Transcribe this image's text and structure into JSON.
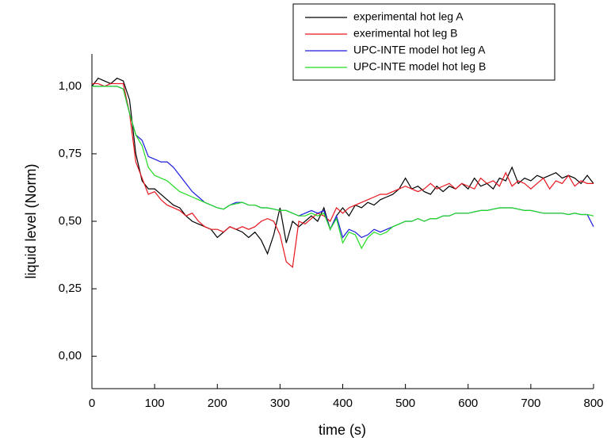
{
  "chart_data": {
    "type": "line",
    "xlabel": "time (s)",
    "ylabel": "liquid level (Norm)",
    "x": [
      0,
      10,
      20,
      30,
      40,
      50,
      60,
      70,
      80,
      90,
      100,
      110,
      120,
      130,
      140,
      150,
      160,
      170,
      180,
      190,
      200,
      210,
      220,
      230,
      240,
      250,
      260,
      270,
      280,
      290,
      300,
      310,
      320,
      330,
      340,
      350,
      360,
      370,
      380,
      390,
      400,
      410,
      420,
      430,
      440,
      450,
      460,
      470,
      480,
      490,
      500,
      510,
      520,
      530,
      540,
      550,
      560,
      570,
      580,
      590,
      600,
      610,
      620,
      630,
      640,
      650,
      660,
      670,
      680,
      690,
      700,
      710,
      720,
      730,
      740,
      750,
      760,
      770,
      780,
      790,
      800
    ],
    "series": [
      {
        "name": "experimental hot leg A",
        "color": "#000000",
        "values": [
          1.0,
          1.03,
          1.02,
          1.01,
          1.03,
          1.02,
          0.95,
          0.75,
          0.65,
          0.62,
          0.62,
          0.6,
          0.58,
          0.56,
          0.55,
          0.52,
          0.5,
          0.49,
          0.48,
          0.47,
          0.44,
          0.46,
          0.48,
          0.47,
          0.46,
          0.44,
          0.46,
          0.43,
          0.38,
          0.45,
          0.55,
          0.42,
          0.5,
          0.48,
          0.5,
          0.52,
          0.5,
          0.55,
          0.47,
          0.52,
          0.55,
          0.52,
          0.56,
          0.55,
          0.57,
          0.56,
          0.58,
          0.59,
          0.6,
          0.62,
          0.66,
          0.62,
          0.63,
          0.61,
          0.6,
          0.63,
          0.61,
          0.63,
          0.62,
          0.64,
          0.62,
          0.66,
          0.63,
          0.64,
          0.62,
          0.66,
          0.65,
          0.7,
          0.64,
          0.66,
          0.65,
          0.67,
          0.66,
          0.67,
          0.68,
          0.66,
          0.67,
          0.66,
          0.64,
          0.67,
          0.64
        ]
      },
      {
        "name": "exerimental hot leg B",
        "color": "#e8141c",
        "values": [
          1.01,
          1.01,
          1.0,
          1.01,
          1.01,
          1.01,
          0.9,
          0.72,
          0.66,
          0.6,
          0.61,
          0.58,
          0.56,
          0.55,
          0.54,
          0.52,
          0.53,
          0.5,
          0.48,
          0.47,
          0.47,
          0.46,
          0.48,
          0.47,
          0.48,
          0.47,
          0.48,
          0.5,
          0.51,
          0.5,
          0.45,
          0.35,
          0.33,
          0.5,
          0.49,
          0.51,
          0.53,
          0.52,
          0.5,
          0.55,
          0.53,
          0.55,
          0.56,
          0.57,
          0.58,
          0.59,
          0.6,
          0.6,
          0.61,
          0.62,
          0.63,
          0.62,
          0.61,
          0.62,
          0.64,
          0.62,
          0.63,
          0.64,
          0.62,
          0.64,
          0.63,
          0.62,
          0.66,
          0.64,
          0.65,
          0.63,
          0.68,
          0.63,
          0.65,
          0.64,
          0.62,
          0.64,
          0.66,
          0.62,
          0.65,
          0.64,
          0.67,
          0.63,
          0.65,
          0.64,
          0.64
        ]
      },
      {
        "name": "UPC-INTE model hot leg A",
        "color": "#1c1ce0",
        "values": [
          1.0,
          1.0,
          1.0,
          1.0,
          1.0,
          0.99,
          0.9,
          0.82,
          0.8,
          0.74,
          0.73,
          0.72,
          0.72,
          0.7,
          0.67,
          0.64,
          0.61,
          0.59,
          0.57,
          0.56,
          0.55,
          0.545,
          0.56,
          0.57,
          0.57,
          0.56,
          0.56,
          0.55,
          0.55,
          0.545,
          0.54,
          0.54,
          0.53,
          0.52,
          0.53,
          0.54,
          0.53,
          0.54,
          0.47,
          0.52,
          0.44,
          0.47,
          0.46,
          0.44,
          0.45,
          0.47,
          0.46,
          0.47,
          0.48,
          0.49,
          0.5,
          0.5,
          0.51,
          0.5,
          0.51,
          0.51,
          0.52,
          0.52,
          0.53,
          0.53,
          0.53,
          0.535,
          0.54,
          0.54,
          0.545,
          0.55,
          0.55,
          0.55,
          0.545,
          0.54,
          0.54,
          0.535,
          0.53,
          0.53,
          0.53,
          0.53,
          0.525,
          0.53,
          0.525,
          0.525,
          0.48
        ]
      },
      {
        "name": "UPC-INTE model hot leg B",
        "color": "#22dd22",
        "values": [
          1.0,
          1.0,
          1.0,
          1.0,
          1.0,
          0.99,
          0.9,
          0.82,
          0.78,
          0.7,
          0.67,
          0.66,
          0.65,
          0.63,
          0.61,
          0.6,
          0.59,
          0.58,
          0.57,
          0.56,
          0.55,
          0.545,
          0.56,
          0.565,
          0.57,
          0.56,
          0.56,
          0.55,
          0.55,
          0.545,
          0.54,
          0.54,
          0.53,
          0.52,
          0.52,
          0.53,
          0.52,
          0.53,
          0.47,
          0.51,
          0.42,
          0.46,
          0.45,
          0.4,
          0.44,
          0.46,
          0.45,
          0.46,
          0.48,
          0.49,
          0.5,
          0.5,
          0.51,
          0.5,
          0.51,
          0.51,
          0.52,
          0.52,
          0.53,
          0.53,
          0.53,
          0.535,
          0.54,
          0.54,
          0.545,
          0.55,
          0.55,
          0.55,
          0.545,
          0.54,
          0.54,
          0.535,
          0.53,
          0.53,
          0.53,
          0.53,
          0.525,
          0.53,
          0.525,
          0.525,
          0.52
        ]
      }
    ],
    "xlim": [
      0,
      800
    ],
    "xticks": [
      0,
      100,
      200,
      300,
      400,
      500,
      600,
      700,
      800
    ],
    "ylim": [
      -0.12,
      1.12
    ],
    "yticks": [
      {
        "value": 0,
        "label": "0,00"
      },
      {
        "value": 0.25,
        "label": "0,25"
      },
      {
        "value": 0.5,
        "label": "0,50"
      },
      {
        "value": 0.75,
        "label": "0,75"
      },
      {
        "value": 1,
        "label": "1,00"
      }
    ],
    "grid": false,
    "legend": "upper right"
  }
}
